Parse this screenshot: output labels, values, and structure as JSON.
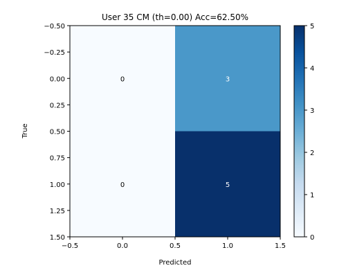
{
  "chart_data": {
    "type": "heatmap",
    "title": "User 35 CM (th=0.00) Acc=62.50%",
    "xlabel": "Predicted",
    "ylabel": "True",
    "values": [
      [
        0,
        3
      ],
      [
        0,
        5
      ]
    ],
    "cell_labels": [
      [
        "0",
        "3"
      ],
      [
        "0",
        "5"
      ]
    ],
    "xlim": [
      -0.5,
      1.5
    ],
    "ylim": [
      1.5,
      -0.5
    ],
    "x_ticks": [
      "−0.5",
      "0.0",
      "0.5",
      "1.0",
      "1.5"
    ],
    "y_ticks": [
      "−0.50",
      "−0.25",
      "0.00",
      "0.25",
      "0.50",
      "0.75",
      "1.00",
      "1.25",
      "1.50"
    ],
    "colormap": "Blues",
    "colorbar_range": [
      0,
      5
    ],
    "colorbar_ticks": [
      "0",
      "1",
      "2",
      "3",
      "4",
      "5"
    ],
    "colors": {
      "cell_low": "#f7fbff",
      "cell_mid": "#4292c6",
      "cell_high": "#08306b",
      "text_dark": "#000000",
      "text_light": "#ffffff"
    }
  }
}
